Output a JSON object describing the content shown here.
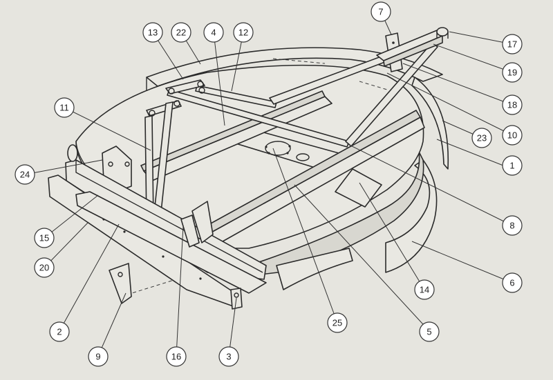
{
  "callouts": [
    {
      "id": "c1",
      "label": "1"
    },
    {
      "id": "c2",
      "label": "2"
    },
    {
      "id": "c3",
      "label": "3"
    },
    {
      "id": "c4",
      "label": "4"
    },
    {
      "id": "c5",
      "label": "5"
    },
    {
      "id": "c6",
      "label": "6"
    },
    {
      "id": "c7",
      "label": "7"
    },
    {
      "id": "c8",
      "label": "8"
    },
    {
      "id": "c9",
      "label": "9"
    },
    {
      "id": "c10",
      "label": "10"
    },
    {
      "id": "c11",
      "label": "11"
    },
    {
      "id": "c12",
      "label": "12"
    },
    {
      "id": "c13",
      "label": "13"
    },
    {
      "id": "c14",
      "label": "14"
    },
    {
      "id": "c15",
      "label": "15"
    },
    {
      "id": "c16",
      "label": "16"
    },
    {
      "id": "c17",
      "label": "17"
    },
    {
      "id": "c18",
      "label": "18"
    },
    {
      "id": "c19",
      "label": "19"
    },
    {
      "id": "c20",
      "label": "20"
    },
    {
      "id": "c22",
      "label": "22"
    },
    {
      "id": "c23",
      "label": "23"
    },
    {
      "id": "c24",
      "label": "24"
    },
    {
      "id": "c25",
      "label": "25"
    }
  ]
}
